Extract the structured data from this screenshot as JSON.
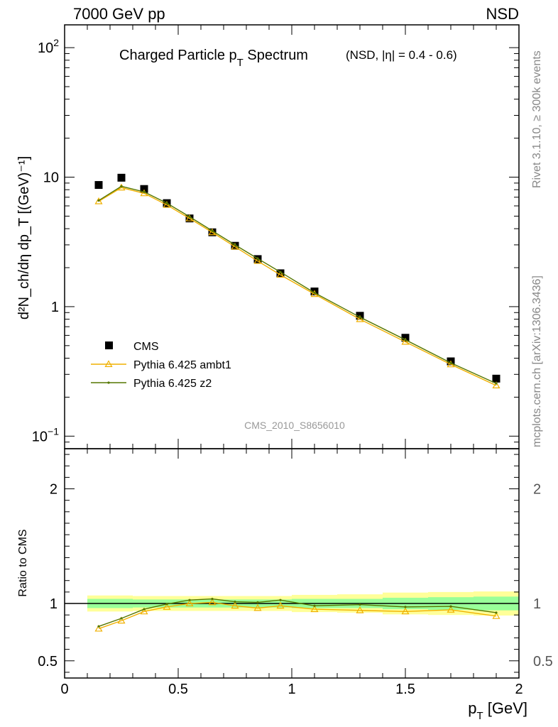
{
  "header": {
    "left": "7000 GeV pp",
    "right": "NSD"
  },
  "side_labels": {
    "rivet": "Rivet 3.1.10, ≥ 300k events",
    "mcplots": "mcplots.cern.ch [arXiv:1306.3436]"
  },
  "chart_data": [
    {
      "type": "line",
      "panel": "main",
      "title": "Charged Particle p",
      "title_sub": "T",
      "title_tail": " Spectrum",
      "title_qualifier": "(NSD, |η| = 0.4 - 0.6)",
      "ylabel": "d²N_ch/dη dp_T [(GeV)⁻¹]",
      "yscale": "log",
      "ylim": [
        0.08,
        150
      ],
      "xlim": [
        0,
        2
      ],
      "yticks": [
        {
          "value": 0.1,
          "label": "10",
          "sup": "−1"
        },
        {
          "value": 1,
          "label": "1",
          "sup": ""
        },
        {
          "value": 10,
          "label": "10",
          "sup": ""
        },
        {
          "value": 100,
          "label": "10",
          "sup": "2"
        }
      ],
      "watermark": "CMS_2010_S8656010",
      "legend": [
        {
          "name": "CMS",
          "color": "#000000",
          "marker": "square"
        },
        {
          "name": "Pythia 6.425 ambt1",
          "color": "#f0b000",
          "marker": "triangle"
        },
        {
          "name": "Pythia 6.425 z2",
          "color": "#557700",
          "marker": "dot"
        }
      ],
      "x": [
        0.15,
        0.25,
        0.35,
        0.45,
        0.55,
        0.65,
        0.75,
        0.85,
        0.95,
        1.1,
        1.3,
        1.5,
        1.7,
        1.9
      ],
      "series": [
        {
          "name": "CMS",
          "values": [
            8.7,
            9.9,
            8.1,
            6.3,
            4.8,
            3.75,
            2.95,
            2.33,
            1.81,
            1.31,
            0.85,
            0.575,
            0.378,
            0.278
          ]
        },
        {
          "name": "Pythia 6.425 ambt1",
          "values": [
            6.5,
            8.3,
            7.5,
            6.1,
            4.8,
            3.75,
            2.9,
            2.25,
            1.76,
            1.25,
            0.8,
            0.535,
            0.358,
            0.246
          ]
        },
        {
          "name": "Pythia 6.425 z2",
          "values": [
            6.6,
            8.5,
            7.7,
            6.3,
            4.95,
            3.85,
            3.0,
            2.35,
            1.85,
            1.28,
            0.83,
            0.555,
            0.368,
            0.255
          ]
        }
      ]
    },
    {
      "type": "line",
      "panel": "ratio",
      "ylabel": "Ratio to CMS",
      "ylim": [
        0.35,
        2.35
      ],
      "yticks": [
        0.5,
        1,
        2
      ],
      "xlabel": "p",
      "xlabel_sub": "T",
      "xlabel_unit": " [GeV]",
      "xticks": [
        {
          "value": 0,
          "label": "0"
        },
        {
          "value": 0.5,
          "label": "0.5"
        },
        {
          "value": 1,
          "label": "1"
        },
        {
          "value": 1.5,
          "label": "1.5"
        },
        {
          "value": 2,
          "label": "2"
        }
      ],
      "x": [
        0.15,
        0.25,
        0.35,
        0.45,
        0.55,
        0.65,
        0.75,
        0.85,
        0.95,
        1.1,
        1.3,
        1.5,
        1.7,
        1.9
      ],
      "bins": [
        [
          0.1,
          0.2
        ],
        [
          0.2,
          0.3
        ],
        [
          0.3,
          0.4
        ],
        [
          0.4,
          0.5
        ],
        [
          0.5,
          0.6
        ],
        [
          0.6,
          0.7
        ],
        [
          0.7,
          0.8
        ],
        [
          0.8,
          0.9
        ],
        [
          0.9,
          1.0
        ],
        [
          1.0,
          1.2
        ],
        [
          1.2,
          1.4
        ],
        [
          1.4,
          1.6
        ],
        [
          1.6,
          1.8
        ],
        [
          1.8,
          2.0
        ]
      ],
      "band_inner": [
        0.04,
        0.04,
        0.035,
        0.035,
        0.035,
        0.035,
        0.035,
        0.035,
        0.035,
        0.04,
        0.04,
        0.05,
        0.055,
        0.06
      ],
      "band_outer": [
        0.07,
        0.07,
        0.065,
        0.065,
        0.065,
        0.065,
        0.065,
        0.065,
        0.065,
        0.075,
        0.08,
        0.095,
        0.1,
        0.105
      ],
      "series": [
        {
          "name": "Pythia 6.425 ambt1",
          "values": [
            0.78,
            0.85,
            0.93,
            0.97,
            1.0,
            1.01,
            0.98,
            0.96,
            0.98,
            0.95,
            0.94,
            0.93,
            0.945,
            0.89
          ]
        },
        {
          "name": "Pythia 6.425 z2",
          "values": [
            0.8,
            0.87,
            0.95,
            0.995,
            1.03,
            1.04,
            1.015,
            1.01,
            1.03,
            0.98,
            0.99,
            0.97,
            0.975,
            0.92
          ]
        }
      ]
    }
  ]
}
